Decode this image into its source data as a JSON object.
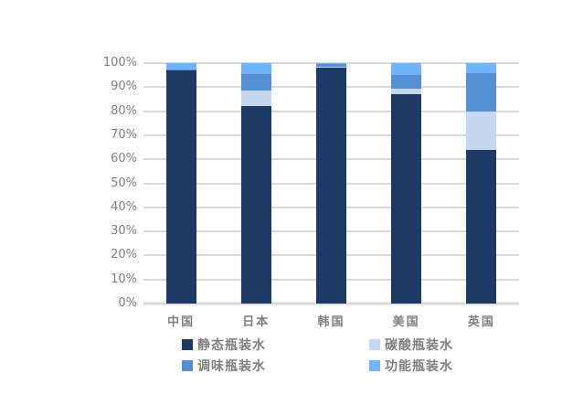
{
  "page": {
    "background_color": "#ffffff",
    "grid_color": "#d9d9d9",
    "text_color": "#7f7f7f"
  },
  "chart_data": {
    "type": "bar",
    "stacked": true,
    "orientation": "vertical",
    "title": "",
    "xlabel": "",
    "ylabel": "",
    "ylim": [
      0,
      100
    ],
    "grid": true,
    "categories": [
      "中国",
      "日本",
      "韩国",
      "美国",
      "英国"
    ],
    "series": [
      {
        "name": "静态瓶装水",
        "color": "#1c3a63",
        "values": [
          97,
          82,
          98,
          87,
          64
        ]
      },
      {
        "name": "碳酸瓶装水",
        "color": "#c6d8ef",
        "values": [
          0,
          6.5,
          0.4,
          2.5,
          16
        ]
      },
      {
        "name": "调味瓶装水",
        "color": "#548fd3",
        "values": [
          0.5,
          7,
          1.2,
          5.5,
          16
        ]
      },
      {
        "name": "功能瓶装水",
        "color": "#6fb4fd",
        "values": [
          2.5,
          4.5,
          0.4,
          5,
          4
        ]
      }
    ],
    "yticks": [
      "0%",
      "10%",
      "20%",
      "30%",
      "40%",
      "50%",
      "60%",
      "70%",
      "80%",
      "90%",
      "100%"
    ],
    "legend_position": "bottom",
    "legend": [
      {
        "label": "静态瓶装水",
        "color": "#1c3a63"
      },
      {
        "label": "碳酸瓶装水",
        "color": "#c6d8ef"
      },
      {
        "label": "调味瓶装水",
        "color": "#548fd3"
      },
      {
        "label": "功能瓶装水",
        "color": "#6fb4fd"
      }
    ]
  }
}
